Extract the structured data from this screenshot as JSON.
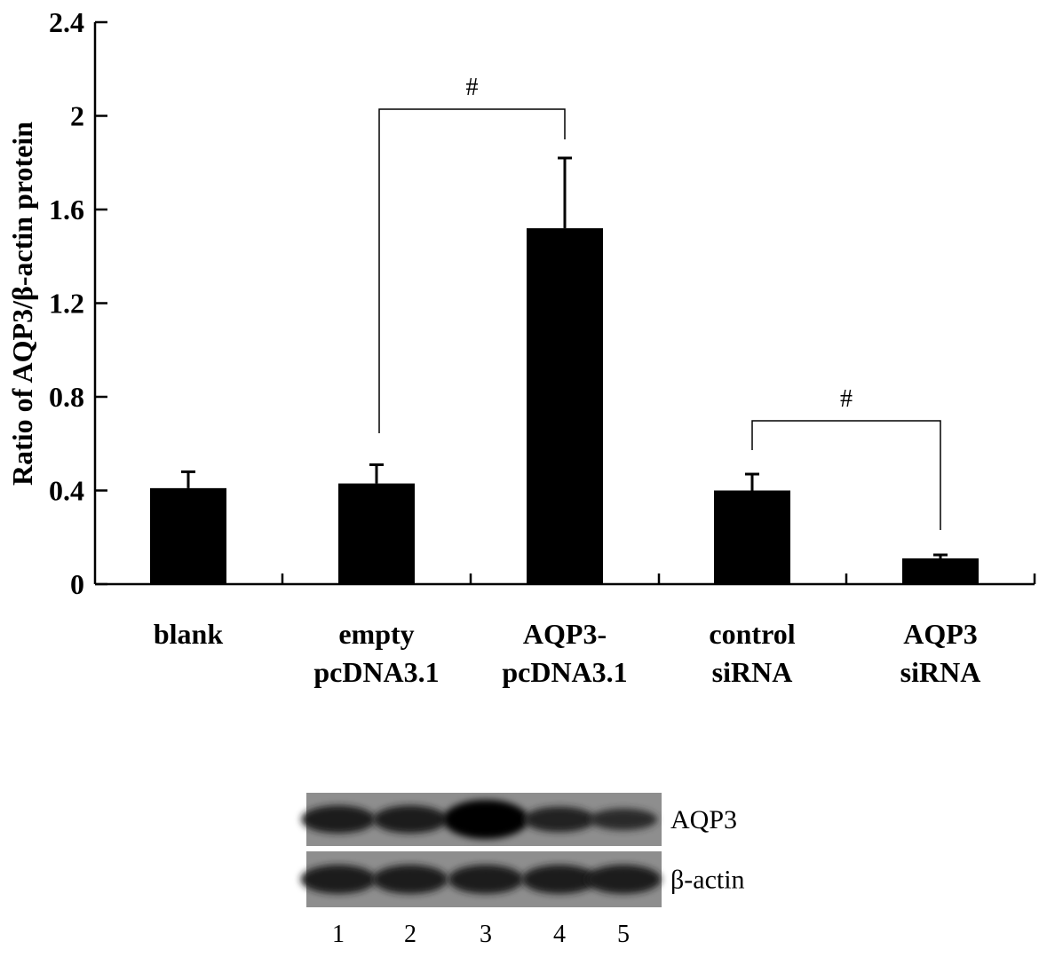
{
  "chart_data": {
    "type": "bar",
    "ylabel": "Ratio of AQP3/β-actin protein",
    "ylim": [
      0,
      2.4
    ],
    "yticks": [
      "0",
      "0.4",
      "0.8",
      "1.2",
      "1.6",
      "2",
      "2.4"
    ],
    "categories": [
      [
        "blank"
      ],
      [
        "empty",
        "pcDNA3.1"
      ],
      [
        "AQP3-",
        "pcDNA3.1"
      ],
      [
        "control",
        "siRNA"
      ],
      [
        "AQP3",
        "siRNA"
      ]
    ],
    "values": [
      0.41,
      0.43,
      1.52,
      0.4,
      0.11
    ],
    "errors": [
      0.07,
      0.08,
      0.3,
      0.07,
      0.015
    ],
    "bar_color": "#000000",
    "significance": [
      {
        "from": 1,
        "to": 2,
        "label": "#"
      },
      {
        "from": 3,
        "to": 4,
        "label": "#"
      }
    ]
  },
  "blot": {
    "bands": [
      "AQP3",
      "β-actin"
    ],
    "lanes": [
      "1",
      "2",
      "3",
      "4",
      "5"
    ],
    "aqp3_intensity": [
      0.55,
      0.55,
      1.0,
      0.45,
      0.3
    ],
    "actin_intensity": [
      0.6,
      0.6,
      0.6,
      0.6,
      0.6
    ]
  }
}
